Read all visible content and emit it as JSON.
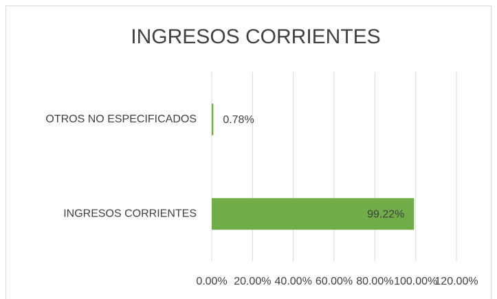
{
  "chart_data": {
    "type": "bar",
    "orientation": "horizontal",
    "title": "INGRESOS CORRIENTES",
    "categories": [
      "OTROS NO ESPECIFICADOS",
      "INGRESOS CORRIENTES"
    ],
    "values": [
      0.78,
      99.22
    ],
    "value_labels": [
      "0.78%",
      "99.22%"
    ],
    "color": "#70ad47",
    "xlim": [
      0,
      120
    ],
    "xticks": [
      {
        "value": 0,
        "label": "0.00%"
      },
      {
        "value": 20,
        "label": "20.00%"
      },
      {
        "value": 40,
        "label": "40.00%"
      },
      {
        "value": 60,
        "label": "60.00%"
      },
      {
        "value": 80,
        "label": "80.00%"
      },
      {
        "value": 100,
        "label": "100.00%"
      },
      {
        "value": 120,
        "label": "120.00%"
      }
    ],
    "grid": true
  }
}
